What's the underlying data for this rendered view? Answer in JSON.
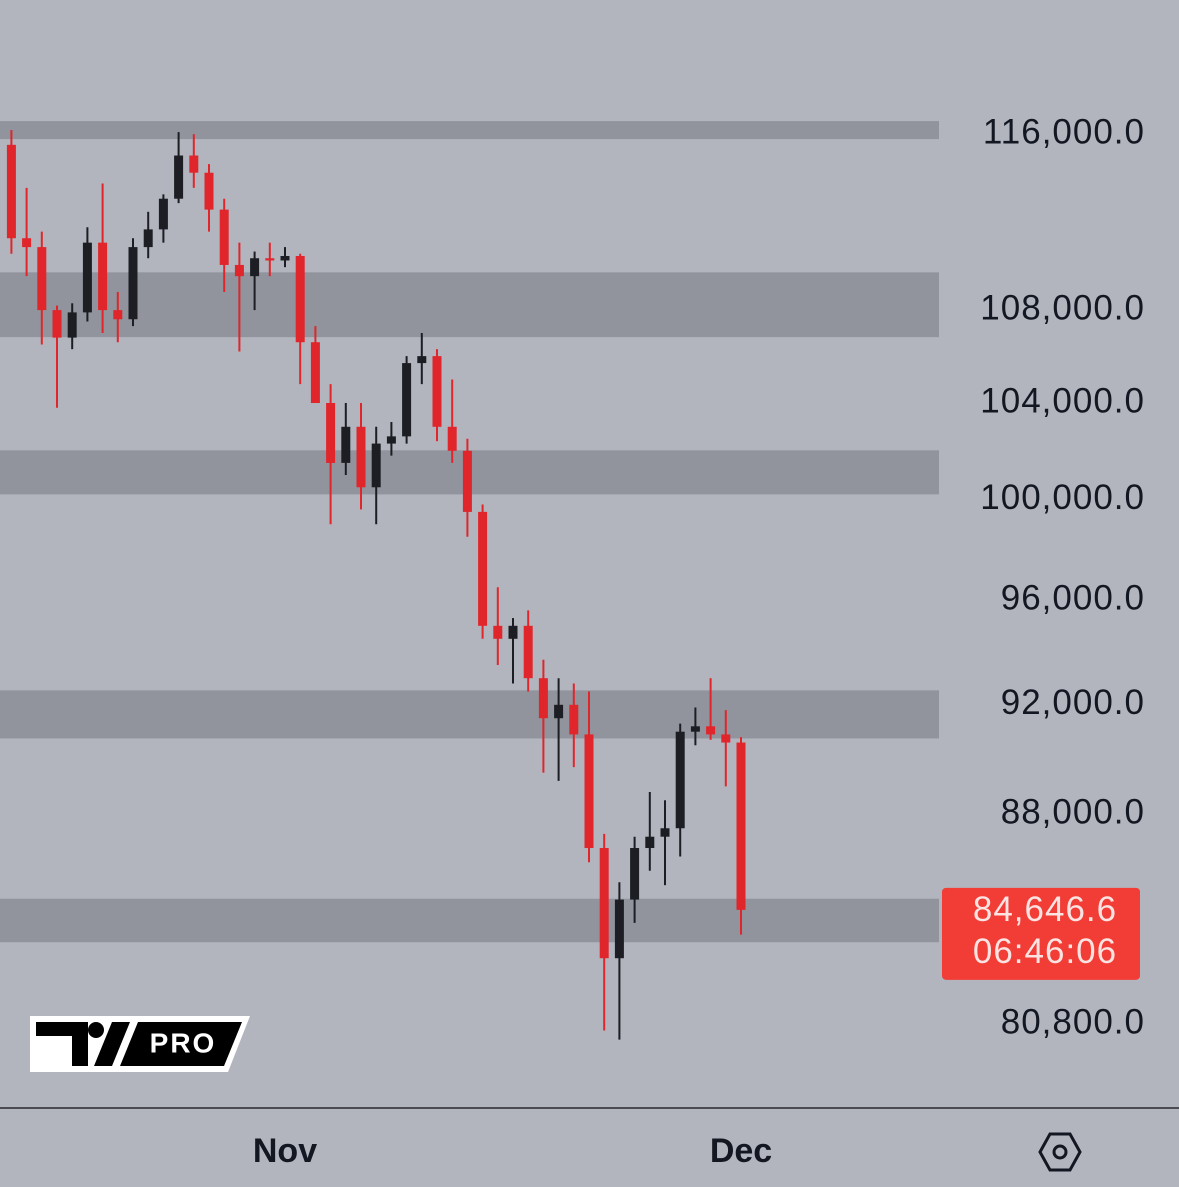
{
  "chart_data": {
    "type": "candlestick",
    "categories": [
      null,
      null,
      null,
      null,
      null,
      null,
      null,
      null,
      null,
      null,
      null,
      null,
      null,
      null,
      null,
      null,
      null,
      null,
      "Nov",
      null,
      null,
      null,
      null,
      null,
      null,
      null,
      null,
      null,
      null,
      null,
      null,
      null,
      null,
      null,
      null,
      null,
      null,
      null,
      null,
      null,
      null,
      null,
      null,
      null,
      null,
      null,
      null,
      null,
      "Dec"
    ],
    "open": [
      115500,
      111200,
      110800,
      108000,
      106800,
      107900,
      111000,
      108000,
      107600,
      110800,
      111600,
      113000,
      115000,
      114200,
      112500,
      110000,
      109500,
      110300,
      110200,
      110400,
      106600,
      104000,
      101500,
      103000,
      100500,
      102300,
      102600,
      105700,
      106000,
      103000,
      102000,
      99500,
      95000,
      94500,
      95000,
      93000,
      91500,
      92000,
      90900,
      86800,
      83000,
      85000,
      86800,
      87200,
      87500,
      91000,
      91200,
      90900,
      90600
    ],
    "high": [
      116200,
      113500,
      111500,
      108200,
      108300,
      111700,
      113700,
      108800,
      111200,
      112400,
      113200,
      116100,
      116000,
      114600,
      113000,
      111000,
      110600,
      111000,
      110800,
      110500,
      107300,
      104800,
      104000,
      104000,
      103000,
      103200,
      106000,
      107000,
      106300,
      105000,
      102500,
      99800,
      96500,
      95300,
      95600,
      93700,
      93000,
      92800,
      92500,
      87300,
      85600,
      87200,
      88800,
      88500,
      91300,
      91900,
      93000,
      91800,
      90800
    ],
    "low": [
      110500,
      109500,
      106500,
      103800,
      106300,
      107500,
      107000,
      106600,
      107300,
      110300,
      111000,
      112800,
      113500,
      111500,
      108800,
      106200,
      108000,
      109500,
      109900,
      104800,
      104000,
      99000,
      101000,
      99600,
      99000,
      101800,
      102300,
      104800,
      102400,
      101500,
      98500,
      94500,
      93500,
      92800,
      92500,
      89500,
      89200,
      89700,
      86300,
      80600,
      80300,
      84200,
      86000,
      85500,
      86500,
      90500,
      90700,
      89000,
      83800
    ],
    "close": [
      111200,
      110800,
      108000,
      106800,
      107900,
      111000,
      108000,
      107600,
      110800,
      111600,
      113000,
      115000,
      114200,
      112500,
      110000,
      109500,
      110300,
      110200,
      110400,
      106600,
      104000,
      101500,
      103000,
      100500,
      102300,
      102600,
      105700,
      106000,
      103000,
      102000,
      99500,
      95000,
      94500,
      95000,
      93000,
      91500,
      92000,
      90900,
      86800,
      83000,
      85000,
      86800,
      87200,
      87500,
      91000,
      91200,
      90900,
      90600,
      84646.6
    ],
    "up_color": "#1c1e24",
    "down_color": "#e0252b",
    "log_scale": true,
    "ylim": [
      78100,
      122500
    ],
    "yticks": [
      {
        "value": 116000,
        "label": "116,000.0"
      },
      {
        "value": 108000,
        "label": "108,000.0"
      },
      {
        "value": 104000,
        "label": "104,000.0"
      },
      {
        "value": 100000,
        "label": "100,000.0"
      },
      {
        "value": 96000,
        "label": "96,000.0"
      },
      {
        "value": 92000,
        "label": "92,000.0"
      },
      {
        "value": 88000,
        "label": "88,000.0"
      },
      {
        "value": 80800,
        "label": "80,800.0"
      }
    ],
    "zones": [
      {
        "low": 115770,
        "high": 116620
      },
      {
        "low": 106820,
        "high": 109670
      },
      {
        "low": 100210,
        "high": 102020
      },
      {
        "low": 90750,
        "high": 92540
      },
      {
        "low": 83540,
        "high": 85030
      }
    ],
    "zone_color": "#8b8e96",
    "last_price_label": "84,646.6",
    "countdown": "06:46:06",
    "price_label_color": "#f23c36"
  },
  "logo": {
    "text": "PRO"
  }
}
